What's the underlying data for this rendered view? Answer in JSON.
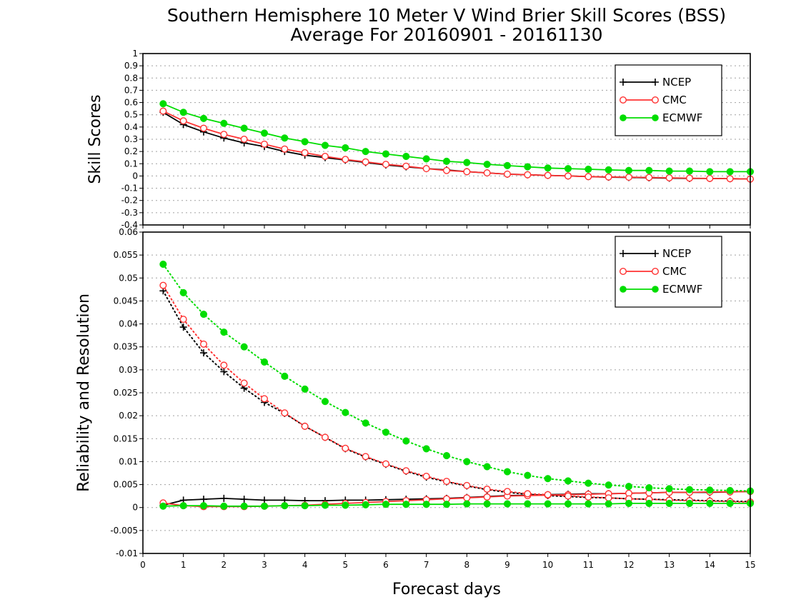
{
  "title_line1": "Southern Hemisphere 10 Meter V Wind Brier Skill Scores (BSS)",
  "title_line2": "Average For 20160901 - 20161130",
  "colors": {
    "NCEP": "#000000",
    "CMC": "#ff3333",
    "ECMWF": "#00dd00"
  },
  "chart_data": [
    {
      "type": "line",
      "ylabel": "Skill Scores",
      "xlabel": "",
      "xlim": [
        0,
        15
      ],
      "ylim": [
        -0.4,
        1
      ],
      "xticks": [
        "0",
        "1",
        "2",
        "3",
        "4",
        "5",
        "6",
        "7",
        "8",
        "9",
        "10",
        "11",
        "12",
        "13",
        "14",
        "15"
      ],
      "yticks": [
        "-0.4",
        "-0.3",
        "-0.2",
        "-0.1",
        "0",
        "0.1",
        "0.2",
        "0.3",
        "0.4",
        "0.5",
        "0.6",
        "0.7",
        "0.8",
        "0.9",
        "1"
      ],
      "grid": true,
      "legend": "top-right",
      "x": [
        0.5,
        1,
        1.5,
        2,
        2.5,
        3,
        3.5,
        4,
        4.5,
        5,
        5.5,
        6,
        6.5,
        7,
        7.5,
        8,
        8.5,
        9,
        9.5,
        10,
        10.5,
        11,
        11.5,
        12,
        12.5,
        13,
        13.5,
        14,
        14.5,
        15
      ],
      "series": [
        {
          "name": "NCEP",
          "marker": "plus",
          "style": "solid",
          "values": [
            0.52,
            0.42,
            0.36,
            0.31,
            0.27,
            0.24,
            0.2,
            0.17,
            0.15,
            0.13,
            0.11,
            0.09,
            0.075,
            0.06,
            0.05,
            0.035,
            0.025,
            0.015,
            0.01,
            0.005,
            0.0,
            -0.005,
            -0.01,
            -0.012,
            -0.015,
            -0.018,
            -0.02,
            -0.02,
            -0.022,
            -0.025
          ]
        },
        {
          "name": "CMC",
          "marker": "open-circle",
          "style": "solid",
          "values": [
            0.53,
            0.45,
            0.39,
            0.34,
            0.3,
            0.26,
            0.22,
            0.19,
            0.16,
            0.135,
            0.115,
            0.095,
            0.08,
            0.06,
            0.045,
            0.035,
            0.025,
            0.015,
            0.01,
            0.005,
            0.0,
            -0.005,
            -0.008,
            -0.01,
            -0.012,
            -0.015,
            -0.018,
            -0.02,
            -0.022,
            -0.025
          ]
        },
        {
          "name": "ECMWF",
          "marker": "filled-circle",
          "style": "solid",
          "values": [
            0.59,
            0.52,
            0.47,
            0.43,
            0.39,
            0.35,
            0.31,
            0.28,
            0.25,
            0.23,
            0.2,
            0.18,
            0.16,
            0.14,
            0.12,
            0.11,
            0.095,
            0.085,
            0.075,
            0.065,
            0.06,
            0.055,
            0.05,
            0.045,
            0.045,
            0.04,
            0.04,
            0.035,
            0.035,
            0.035
          ]
        }
      ]
    },
    {
      "type": "line",
      "ylabel": "Reliability and Resolution",
      "xlabel": "Forecast days",
      "xlim": [
        0,
        15
      ],
      "ylim": [
        -0.01,
        0.06
      ],
      "xticks": [
        "0",
        "1",
        "2",
        "3",
        "4",
        "5",
        "6",
        "7",
        "8",
        "9",
        "10",
        "11",
        "12",
        "13",
        "14",
        "15"
      ],
      "yticks": [
        "-0.01",
        "-0.005",
        "0",
        "0.005",
        "0.01",
        "0.015",
        "0.02",
        "0.025",
        "0.03",
        "0.035",
        "0.04",
        "0.045",
        "0.05",
        "0.055",
        "0.06"
      ],
      "grid": true,
      "legend": "top-right",
      "x": [
        0.5,
        1,
        1.5,
        2,
        2.5,
        3,
        3.5,
        4,
        4.5,
        5,
        5.5,
        6,
        6.5,
        7,
        7.5,
        8,
        8.5,
        9,
        9.5,
        10,
        10.5,
        11,
        11.5,
        12,
        12.5,
        13,
        13.5,
        14,
        14.5,
        15
      ],
      "series": [
        {
          "name": "NCEP",
          "kind": "reliability",
          "marker": "plus",
          "style": "solid",
          "values": [
            0.0005,
            0.0016,
            0.0018,
            0.002,
            0.0018,
            0.0016,
            0.0016,
            0.0015,
            0.0015,
            0.0016,
            0.0016,
            0.0017,
            0.0018,
            0.0019,
            0.002,
            0.0022,
            0.0024,
            0.0026,
            0.0027,
            0.0028,
            0.0029,
            0.003,
            0.003,
            0.0031,
            0.0032,
            0.0033,
            0.0033,
            0.0033,
            0.0034,
            0.0035
          ]
        },
        {
          "name": "NCEP",
          "kind": "resolution",
          "marker": "plus",
          "style": "dotted",
          "values": [
            0.0472,
            0.0393,
            0.0337,
            0.0296,
            0.026,
            0.0229,
            0.0205,
            0.0177,
            0.0153,
            0.0128,
            0.011,
            0.0094,
            0.0079,
            0.0066,
            0.0056,
            0.0047,
            0.0039,
            0.0033,
            0.0029,
            0.0026,
            0.0024,
            0.0022,
            0.0021,
            0.0019,
            0.0018,
            0.0017,
            0.0016,
            0.0015,
            0.0014,
            0.0013
          ]
        },
        {
          "name": "CMC",
          "kind": "reliability",
          "marker": "open-circle",
          "style": "solid",
          "values": [
            0.001,
            0.0004,
            0.0002,
            0.0002,
            0.0002,
            0.0003,
            0.0004,
            0.0005,
            0.0007,
            0.0009,
            0.0011,
            0.0013,
            0.0015,
            0.0017,
            0.0019,
            0.0021,
            0.0023,
            0.0025,
            0.0026,
            0.0027,
            0.0028,
            0.0029,
            0.003,
            0.0031,
            0.0032,
            0.0033,
            0.0033,
            0.0034,
            0.0034,
            0.0035
          ]
        },
        {
          "name": "CMC",
          "kind": "resolution",
          "marker": "open-circle",
          "style": "dotted",
          "values": [
            0.0484,
            0.041,
            0.0356,
            0.031,
            0.0271,
            0.0237,
            0.0206,
            0.0177,
            0.0153,
            0.0129,
            0.0111,
            0.0095,
            0.008,
            0.0068,
            0.0057,
            0.0048,
            0.004,
            0.0035,
            0.003,
            0.0028,
            0.0025,
            0.0023,
            0.0021,
            0.0019,
            0.0018,
            0.0016,
            0.0015,
            0.0014,
            0.0013,
            0.0012
          ]
        },
        {
          "name": "ECMWF",
          "kind": "reliability",
          "marker": "filled-circle",
          "style": "solid",
          "values": [
            0.0003,
            0.0004,
            0.0004,
            0.0003,
            0.0003,
            0.0003,
            0.0004,
            0.0004,
            0.0005,
            0.0005,
            0.0006,
            0.0007,
            0.0007,
            0.0007,
            0.0007,
            0.0008,
            0.0008,
            0.0008,
            0.0008,
            0.0008,
            0.0008,
            0.0008,
            0.0008,
            0.0009,
            0.0009,
            0.0009,
            0.0009,
            0.0009,
            0.0009,
            0.0009
          ]
        },
        {
          "name": "ECMWF",
          "kind": "resolution",
          "marker": "filled-circle",
          "style": "dotted",
          "values": [
            0.053,
            0.0468,
            0.0421,
            0.0382,
            0.035,
            0.0317,
            0.0286,
            0.0258,
            0.0231,
            0.0207,
            0.0184,
            0.0164,
            0.0145,
            0.0128,
            0.0113,
            0.01,
            0.0089,
            0.0078,
            0.007,
            0.0063,
            0.0058,
            0.0053,
            0.0049,
            0.0046,
            0.0043,
            0.0041,
            0.0039,
            0.0038,
            0.0037,
            0.0036
          ]
        }
      ]
    }
  ]
}
